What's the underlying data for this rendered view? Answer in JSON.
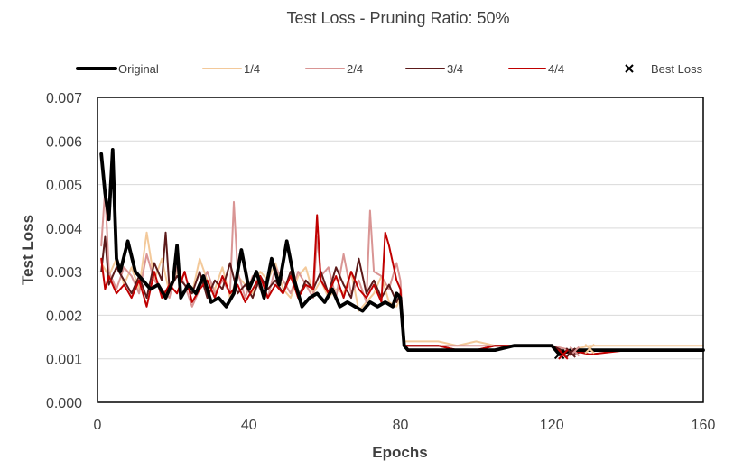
{
  "chart_data": {
    "type": "line",
    "title": "Test Loss - Pruning Ratio: 50%",
    "xlabel": "Epochs",
    "ylabel": "Test Loss",
    "xlim": [
      0,
      160
    ],
    "ylim": [
      0,
      0.007
    ],
    "xticks": [
      0,
      40,
      80,
      120,
      160
    ],
    "yticks": [
      0.0,
      0.001,
      0.002,
      0.003,
      0.004,
      0.005,
      0.006,
      0.007
    ],
    "xtick_labels": [
      "0",
      "40",
      "80",
      "120",
      "160"
    ],
    "ytick_labels": [
      "0.000",
      "0.001",
      "0.002",
      "0.003",
      "0.004",
      "0.005",
      "0.006",
      "0.007"
    ],
    "grid": "horizontal",
    "legend_position": "top",
    "series": [
      {
        "name": "Original",
        "color": "#000000",
        "x": [
          1,
          2,
          3,
          4,
          5,
          6,
          8,
          10,
          12,
          14,
          16,
          18,
          20,
          21,
          22,
          24,
          26,
          28,
          30,
          32,
          34,
          36,
          38,
          40,
          42,
          44,
          46,
          48,
          50,
          52,
          54,
          56,
          58,
          60,
          62,
          64,
          66,
          68,
          70,
          72,
          74,
          76,
          78,
          79,
          80,
          81,
          82,
          85,
          90,
          95,
          100,
          105,
          110,
          115,
          118,
          120,
          122,
          125,
          130,
          140,
          150,
          160
        ],
        "y": [
          0.0057,
          0.0048,
          0.0042,
          0.0058,
          0.0033,
          0.003,
          0.0037,
          0.003,
          0.0028,
          0.0026,
          0.0027,
          0.0024,
          0.0028,
          0.0036,
          0.0024,
          0.0027,
          0.0025,
          0.0029,
          0.0023,
          0.0024,
          0.0022,
          0.0025,
          0.0035,
          0.0026,
          0.003,
          0.0024,
          0.0033,
          0.0027,
          0.0037,
          0.0028,
          0.0022,
          0.0024,
          0.0025,
          0.0023,
          0.0026,
          0.0022,
          0.0023,
          0.0022,
          0.0021,
          0.0023,
          0.0022,
          0.0023,
          0.0022,
          0.0025,
          0.0024,
          0.0013,
          0.0012,
          0.0012,
          0.0012,
          0.0012,
          0.0012,
          0.0012,
          0.0013,
          0.0013,
          0.0013,
          0.0013,
          0.0011,
          0.0012,
          0.0012,
          0.0012,
          0.0012,
          0.0012
        ]
      },
      {
        "name": "1/4",
        "color": "#f3c99a",
        "x": [
          1,
          3,
          5,
          7,
          9,
          11,
          13,
          15,
          17,
          19,
          21,
          23,
          25,
          27,
          29,
          31,
          33,
          35,
          37,
          39,
          41,
          43,
          45,
          47,
          49,
          51,
          53,
          55,
          57,
          59,
          61,
          63,
          65,
          67,
          69,
          71,
          73,
          75,
          77,
          79,
          80,
          81,
          85,
          90,
          95,
          100,
          105,
          110,
          115,
          120,
          125,
          130,
          140,
          150,
          160
        ],
        "y": [
          0.0032,
          0.0029,
          0.0033,
          0.0027,
          0.0031,
          0.0026,
          0.0039,
          0.0028,
          0.0033,
          0.0025,
          0.003,
          0.0027,
          0.0025,
          0.0033,
          0.0028,
          0.0026,
          0.0031,
          0.0024,
          0.0029,
          0.0027,
          0.0025,
          0.003,
          0.0028,
          0.0032,
          0.0026,
          0.0024,
          0.0029,
          0.0031,
          0.0025,
          0.0028,
          0.0024,
          0.0026,
          0.0025,
          0.003,
          0.0021,
          0.0023,
          0.0025,
          0.0029,
          0.0023,
          0.0022,
          0.0024,
          0.0014,
          0.0014,
          0.0014,
          0.0013,
          0.0014,
          0.0013,
          0.0013,
          0.0013,
          0.0013,
          0.0012,
          0.0013,
          0.0013,
          0.0013,
          0.0013
        ]
      },
      {
        "name": "2/4",
        "color": "#d99594",
        "x": [
          1,
          2,
          3,
          5,
          7,
          9,
          11,
          13,
          15,
          17,
          19,
          21,
          23,
          25,
          27,
          29,
          31,
          33,
          35,
          36,
          37,
          39,
          41,
          43,
          45,
          47,
          49,
          51,
          53,
          55,
          57,
          58,
          59,
          61,
          63,
          65,
          67,
          69,
          71,
          72,
          73,
          75,
          77,
          79,
          80,
          81,
          85,
          90,
          95,
          100,
          105,
          110,
          115,
          120,
          125,
          130,
          140,
          150,
          160
        ],
        "y": [
          0.0036,
          0.0049,
          0.003,
          0.0026,
          0.0031,
          0.0029,
          0.0025,
          0.0034,
          0.0028,
          0.0026,
          0.0024,
          0.0031,
          0.0027,
          0.0022,
          0.0026,
          0.003,
          0.0025,
          0.0028,
          0.0025,
          0.0046,
          0.003,
          0.0024,
          0.0029,
          0.0026,
          0.0024,
          0.0031,
          0.0028,
          0.0025,
          0.003,
          0.0027,
          0.0024,
          0.0038,
          0.0029,
          0.0031,
          0.0024,
          0.0034,
          0.0025,
          0.0028,
          0.0023,
          0.0044,
          0.003,
          0.0029,
          0.0026,
          0.0032,
          0.0028,
          0.0013,
          0.0013,
          0.0013,
          0.0013,
          0.0013,
          0.0013,
          0.0013,
          0.0013,
          0.0013,
          0.0012,
          0.0012,
          0.0012,
          0.0012,
          0.0012
        ]
      },
      {
        "name": "3/4",
        "color": "#5c1a1a",
        "x": [
          1,
          2,
          3,
          5,
          7,
          9,
          11,
          13,
          15,
          17,
          18,
          19,
          21,
          23,
          25,
          27,
          29,
          31,
          33,
          35,
          37,
          39,
          41,
          43,
          45,
          47,
          49,
          51,
          53,
          55,
          57,
          59,
          61,
          63,
          65,
          67,
          69,
          71,
          73,
          75,
          77,
          79,
          80,
          81,
          85,
          90,
          95,
          100,
          105,
          110,
          115,
          120,
          125,
          130,
          140,
          150,
          160
        ],
        "y": [
          0.003,
          0.0038,
          0.0027,
          0.0031,
          0.0028,
          0.0025,
          0.0029,
          0.0024,
          0.0032,
          0.0028,
          0.0039,
          0.0026,
          0.0029,
          0.0027,
          0.0025,
          0.003,
          0.0024,
          0.0028,
          0.0026,
          0.0032,
          0.0025,
          0.0027,
          0.0024,
          0.0029,
          0.0026,
          0.0028,
          0.0025,
          0.003,
          0.0024,
          0.0028,
          0.0026,
          0.003,
          0.0025,
          0.0031,
          0.0027,
          0.0024,
          0.0033,
          0.0025,
          0.0028,
          0.0024,
          0.0027,
          0.0023,
          0.0025,
          0.0013,
          0.0013,
          0.0013,
          0.0012,
          0.0012,
          0.0013,
          0.0013,
          0.0013,
          0.0013,
          0.0011,
          0.0012,
          0.0012,
          0.0012,
          0.0012
        ]
      },
      {
        "name": "4/4",
        "color": "#c00000",
        "x": [
          1,
          2,
          3,
          5,
          7,
          9,
          11,
          13,
          15,
          17,
          19,
          21,
          23,
          25,
          27,
          29,
          31,
          33,
          35,
          37,
          39,
          41,
          43,
          45,
          47,
          49,
          51,
          53,
          55,
          57,
          58,
          59,
          61,
          63,
          65,
          67,
          69,
          71,
          73,
          75,
          76,
          77,
          79,
          80,
          81,
          85,
          90,
          95,
          100,
          105,
          110,
          115,
          120,
          123,
          125,
          130,
          140,
          150,
          160
        ],
        "y": [
          0.0033,
          0.0026,
          0.0029,
          0.0025,
          0.0027,
          0.0024,
          0.0028,
          0.0022,
          0.003,
          0.0024,
          0.0027,
          0.0025,
          0.003,
          0.0023,
          0.0026,
          0.0028,
          0.0024,
          0.0029,
          0.0025,
          0.0027,
          0.0023,
          0.0026,
          0.0029,
          0.0024,
          0.0027,
          0.0025,
          0.0029,
          0.0024,
          0.0027,
          0.0026,
          0.0043,
          0.0028,
          0.0025,
          0.0029,
          0.0024,
          0.003,
          0.0026,
          0.0024,
          0.0027,
          0.0023,
          0.0039,
          0.0036,
          0.0028,
          0.0026,
          0.0013,
          0.0013,
          0.0013,
          0.0012,
          0.0012,
          0.0013,
          0.0013,
          0.0013,
          0.0013,
          0.0011,
          0.0012,
          0.0011,
          0.0012,
          0.0012,
          0.0012
        ]
      }
    ],
    "best_loss": {
      "name": "Best Loss",
      "marker": "x",
      "color": "#000000",
      "points": [
        {
          "series": "Original",
          "x": 122,
          "y": 0.00111,
          "color": "#000000"
        },
        {
          "series": "1/4",
          "x": 130,
          "y": 0.00123,
          "color": "#f3c99a"
        },
        {
          "series": "2/4",
          "x": 126,
          "y": 0.00117,
          "color": "#d99594"
        },
        {
          "series": "3/4",
          "x": 125,
          "y": 0.00114,
          "color": "#5c1a1a"
        },
        {
          "series": "4/4",
          "x": 123,
          "y": 0.0011,
          "color": "#c00000"
        }
      ]
    }
  }
}
